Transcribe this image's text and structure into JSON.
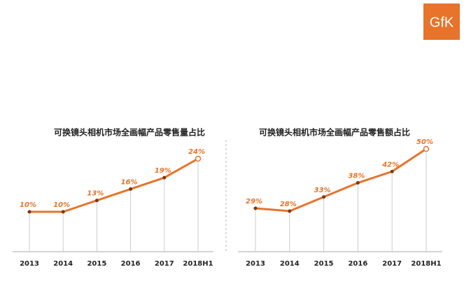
{
  "logo": "GfK",
  "chart_data": [
    {
      "type": "line",
      "title": "可换镜头相机市场全画幅产品零售量占比",
      "categories": [
        "2013",
        "2014",
        "2015",
        "2016",
        "2017",
        "2018H1"
      ],
      "series": [
        {
          "color": "#e8732a",
          "values": [
            10,
            10,
            13,
            16,
            19,
            24
          ],
          "value_labels": [
            "10%",
            "10%",
            "13%",
            "16%",
            "19%",
            "24%"
          ]
        }
      ]
    },
    {
      "type": "line",
      "title": "可换镜头相机市场全画幅产品零售额占比",
      "categories": [
        "2013",
        "2014",
        "2015",
        "2016",
        "2017",
        "2018H1"
      ],
      "series": [
        {
          "color": "#e8732a",
          "values": [
            29,
            28,
            33,
            38,
            42,
            50
          ],
          "value_labels": [
            "29%",
            "28%",
            "33%",
            "38%",
            "42%",
            "50%"
          ]
        }
      ]
    }
  ]
}
